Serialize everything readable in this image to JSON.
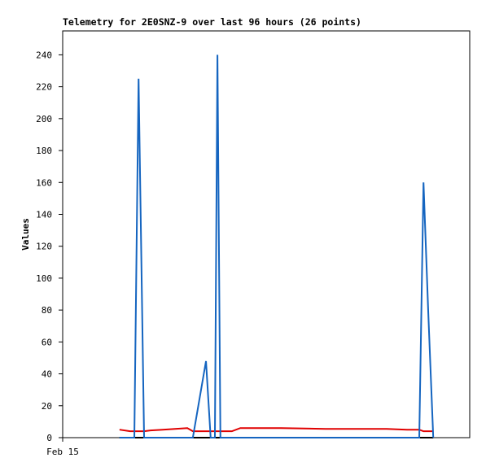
{
  "chart_data": {
    "type": "line",
    "title": "Telemetry for 2E0SNZ-9 over last 96 hours (26 points)",
    "y_label": "Values",
    "x": [
      13.4,
      15.9,
      16.9,
      17.9,
      19.2,
      20.7,
      23.6,
      26.5,
      29.4,
      30.7,
      33.8,
      34.9,
      35.9,
      36.5,
      37.2,
      39.9,
      41.9,
      51.5,
      62,
      71.6,
      76.4,
      81.2,
      84.1,
      85.1,
      86.2,
      87.4
    ],
    "series": [
      {
        "color": "#000000",
        "values": [
          0,
          0,
          0,
          0,
          0,
          0,
          0,
          0,
          0,
          0,
          0,
          0,
          0,
          0,
          0,
          0,
          0,
          0,
          0,
          0,
          0,
          0,
          0,
          0,
          0,
          0
        ]
      },
      {
        "color": "#e00000",
        "values": [
          5,
          4,
          4,
          4,
          4,
          4.5,
          5,
          5.5,
          6,
          4,
          4,
          4,
          4,
          4,
          4,
          4,
          6,
          6,
          5.5,
          5.5,
          5.5,
          5,
          5,
          4,
          4,
          4
        ]
      },
      {
        "color": "#1565c0",
        "values": [
          0,
          0,
          0,
          225,
          0,
          0,
          0,
          0,
          0,
          0,
          48,
          0,
          0,
          240,
          0,
          0,
          0,
          0,
          0,
          0,
          0,
          0,
          0,
          160,
          80,
          0
        ]
      }
    ],
    "xlim": [
      0,
      96
    ],
    "xticks": [
      {
        "value": 0,
        "label": "Feb 15"
      }
    ],
    "ylim": [
      0,
      255
    ],
    "yticks": [
      0,
      20,
      40,
      60,
      80,
      100,
      120,
      140,
      160,
      180,
      200,
      220,
      240
    ]
  }
}
